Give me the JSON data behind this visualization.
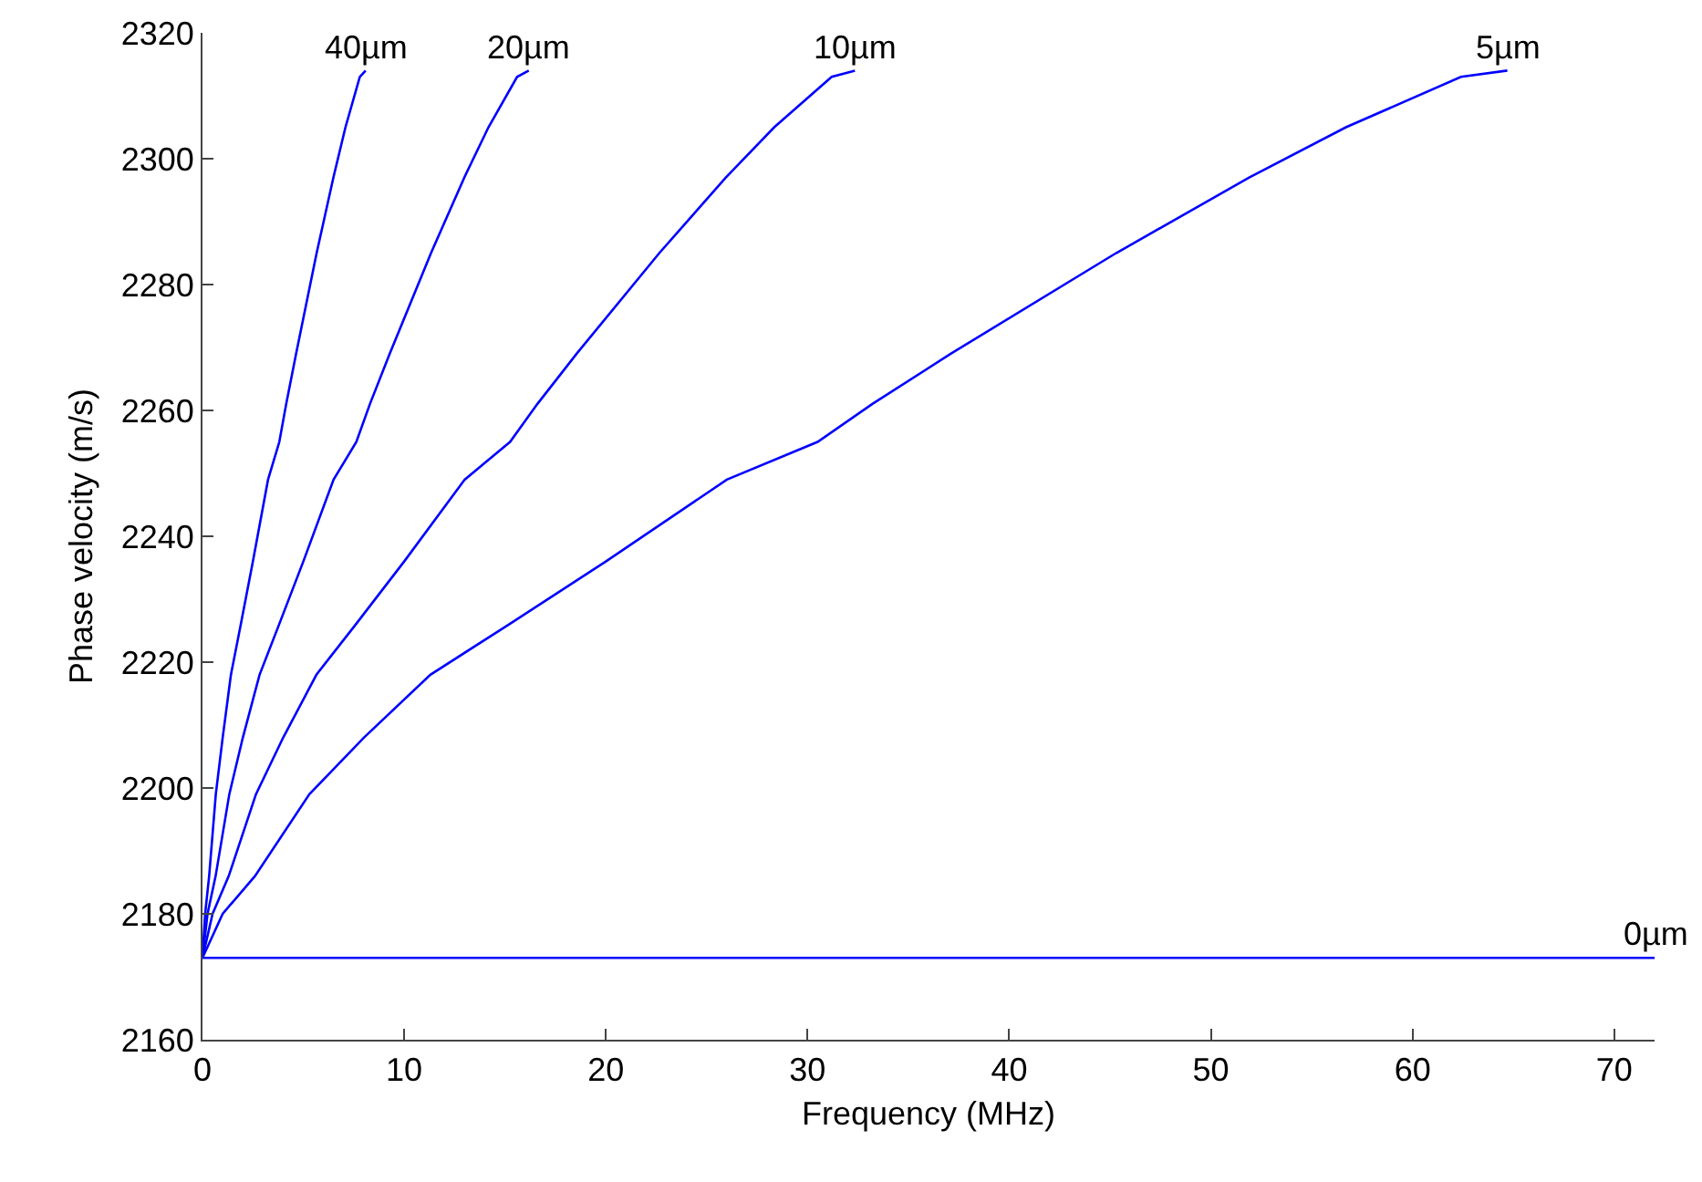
{
  "chart_data": {
    "type": "line",
    "xlabel": "Frequency (MHz)",
    "ylabel": "Phase velocity (m/s)",
    "xlim": [
      0,
      72
    ],
    "xticks": [
      0,
      10,
      20,
      30,
      40,
      50,
      60,
      70
    ],
    "ylim": [
      2160,
      2320
    ],
    "yticks": [
      2160,
      2180,
      2200,
      2220,
      2240,
      2260,
      2280,
      2300,
      2320
    ],
    "grid": false,
    "legend": false,
    "marker": "none",
    "line_style": "solid",
    "series": [
      {
        "name": "40µm",
        "color": "#0000ff",
        "x": [
          0,
          0.13,
          0.33,
          0.66,
          1,
          1.41,
          1.9,
          2.5,
          3.25,
          3.81,
          4.15,
          4.64,
          5.66,
          6.49,
          7.09,
          7.8,
          8.09
        ],
        "values": [
          2173,
          2180,
          2186,
          2199,
          2208,
          2218,
          2226,
          2236,
          2249,
          2255,
          2261,
          2269,
          2285,
          2297,
          2305,
          2313,
          2314
        ]
      },
      {
        "name": "20µm",
        "color": "#0000ff",
        "x": [
          0,
          0.25,
          0.65,
          1.33,
          2,
          2.83,
          3.8,
          5,
          6.5,
          7.63,
          8.3,
          9.28,
          11.33,
          12.98,
          14.18,
          15.6,
          16.18
        ],
        "values": [
          2173,
          2180,
          2186,
          2199,
          2208,
          2218,
          2226,
          2236,
          2249,
          2255,
          2261,
          2269,
          2285,
          2297,
          2305,
          2313,
          2314
        ]
      },
      {
        "name": "10µm",
        "color": "#0000ff",
        "x": [
          0,
          0.5,
          1.3,
          2.65,
          4,
          5.65,
          7.6,
          10,
          13,
          15.25,
          16.6,
          18.55,
          22.65,
          25.95,
          28.35,
          31.2,
          32.35
        ],
        "values": [
          2173,
          2180,
          2186,
          2199,
          2208,
          2218,
          2226,
          2236,
          2249,
          2255,
          2261,
          2269,
          2285,
          2297,
          2305,
          2313,
          2314
        ]
      },
      {
        "name": "5µm",
        "color": "#0000ff",
        "x": [
          0,
          1,
          2.6,
          5.3,
          8,
          11.3,
          15.2,
          20,
          26,
          30.5,
          33.2,
          37.1,
          45.3,
          51.9,
          56.7,
          62.4,
          64.7
        ],
        "values": [
          2173,
          2180,
          2186,
          2199,
          2208,
          2218,
          2226,
          2236,
          2249,
          2255,
          2261,
          2269,
          2285,
          2297,
          2305,
          2313,
          2314
        ]
      },
      {
        "name": "0µm",
        "color": "#0000ff",
        "x": [
          0,
          72
        ],
        "values": [
          2173,
          2173
        ]
      }
    ]
  }
}
